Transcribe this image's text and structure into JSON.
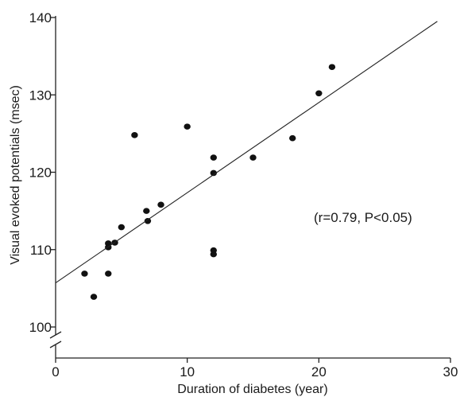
{
  "chart_data": {
    "type": "scatter",
    "title": "",
    "xlabel": "Duration of diabetes (year)",
    "ylabel": "Visual evoked potentials (msec)",
    "xlim": [
      0,
      30
    ],
    "ylim": [
      100,
      140
    ],
    "xticks": [
      0,
      10,
      20,
      30
    ],
    "yticks": [
      100,
      110,
      120,
      130,
      140
    ],
    "axis_break": "y",
    "grid": false,
    "annotation": "(r=0.79, P<0.05)",
    "series": [
      {
        "x": [
          2.2,
          2.9,
          4.0,
          4.0,
          4.0,
          4.5,
          5.0,
          6.0,
          6.9,
          7.0,
          8.0,
          10.0,
          12.0,
          12.0,
          12.0,
          12.0,
          15.0,
          18.0,
          20.0,
          21.0
        ],
        "y": [
          106.9,
          103.9,
          110.8,
          110.3,
          106.9,
          110.9,
          112.9,
          124.8,
          115.0,
          113.7,
          115.8,
          125.9,
          121.9,
          119.9,
          109.9,
          109.4,
          121.9,
          124.4,
          130.2,
          133.6
        ]
      }
    ],
    "regression_line": {
      "x": [
        0,
        29
      ],
      "y": [
        105.7,
        139.5
      ]
    }
  }
}
